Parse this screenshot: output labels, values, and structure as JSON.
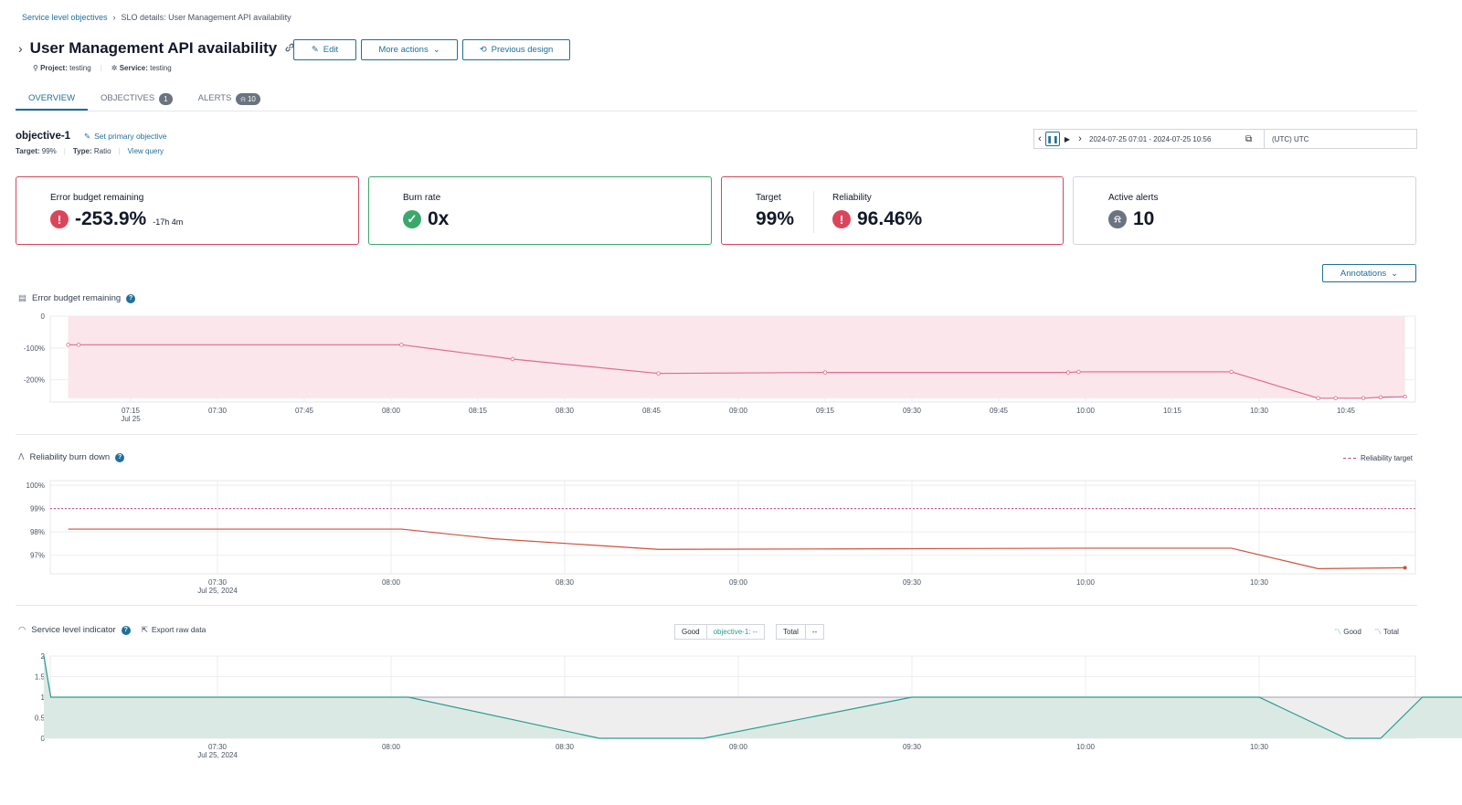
{
  "breadcrumb": {
    "root": "Service level objectives",
    "separator": "›",
    "current": "SLO details: User Management API availability"
  },
  "header": {
    "title": "User Management API availability",
    "edit_label": "Edit",
    "more_actions_label": "More actions",
    "previous_design_label": "Previous design",
    "project_label": "Project:",
    "project_value": "testing",
    "service_label": "Service:",
    "service_value": "testing"
  },
  "tabs": [
    {
      "label": "OVERVIEW",
      "active": true
    },
    {
      "label": "OBJECTIVES",
      "badge": "1"
    },
    {
      "label": "ALERTS",
      "badge": "10"
    }
  ],
  "objective": {
    "name": "objective-1",
    "set_primary": "Set primary objective",
    "target_label": "Target:",
    "target_value": "99%",
    "type_label": "Type:",
    "type_value": "Ratio",
    "view_query": "View query"
  },
  "time_range": {
    "range": "2024-07-25 07:01 - 2024-07-25 10:56",
    "timezone": "(UTC) UTC"
  },
  "cards": {
    "error_budget": {
      "label": "Error budget remaining",
      "value": "-253.9%",
      "sub": "-17h 4m"
    },
    "burn_rate": {
      "label": "Burn rate",
      "value": "0x"
    },
    "target": {
      "label": "Target",
      "value": "99%"
    },
    "reliability": {
      "label": "Reliability",
      "value": "96.46%"
    },
    "active_alerts": {
      "label": "Active alerts",
      "value": "10"
    }
  },
  "annotations_label": "Annotations",
  "colors": {
    "accent": "#1f6f9a",
    "error": "#d9465b",
    "success": "#3aa86a",
    "sli": "#2a9d8f"
  },
  "chart_data": [
    {
      "type": "area",
      "title": "Error budget remaining",
      "x_ticks": [
        "07:15",
        "07:30",
        "07:45",
        "08:00",
        "08:15",
        "08:30",
        "08:45",
        "09:00",
        "09:15",
        "09:30",
        "09:45",
        "10:00",
        "10:15",
        "10:30",
        "10:45"
      ],
      "x_sub_label": "Jul 25",
      "y_ticks": [
        "0",
        "-100%",
        "-200%"
      ],
      "ylim": [
        -270,
        0
      ],
      "series": [
        {
          "values": [
            [
              7.07,
              -90
            ],
            [
              7.1,
              -90
            ],
            [
              8.03,
              -90
            ],
            [
              8.35,
              -135
            ],
            [
              8.77,
              -180
            ],
            [
              9.25,
              -177
            ],
            [
              9.95,
              -177
            ],
            [
              9.98,
              -175
            ],
            [
              10.42,
              -175
            ],
            [
              10.67,
              -258
            ],
            [
              10.72,
              -258
            ],
            [
              10.8,
              -258
            ],
            [
              10.85,
              -255
            ],
            [
              10.92,
              -253
            ]
          ]
        }
      ]
    },
    {
      "type": "line",
      "title": "Reliability burn down",
      "legend": "Reliability target",
      "x_ticks": [
        "07:30",
        "08:00",
        "08:30",
        "09:00",
        "09:30",
        "10:00",
        "10:30"
      ],
      "x_sub_label": "Jul 25, 2024",
      "y_ticks": [
        "100%",
        "99%",
        "98%",
        "97%"
      ],
      "ylim": [
        96.2,
        100.2
      ],
      "target": 99,
      "series": [
        {
          "values": [
            [
              7.07,
              98.12
            ],
            [
              8.03,
              98.12
            ],
            [
              8.3,
              97.7
            ],
            [
              8.77,
              97.25
            ],
            [
              9.3,
              97.27
            ],
            [
              10.0,
              97.3
            ],
            [
              10.42,
              97.3
            ],
            [
              10.67,
              96.42
            ],
            [
              10.92,
              96.46
            ]
          ]
        }
      ]
    },
    {
      "type": "area",
      "title": "Service level indicator",
      "export_label": "Export raw data",
      "good_label": "Good",
      "good_value": "objective-1: --",
      "total_label": "Total",
      "total_value": "--",
      "legend": [
        "Good",
        "Total"
      ],
      "x_ticks": [
        "07:30",
        "08:00",
        "08:30",
        "09:00",
        "09:30",
        "10:00",
        "10:30"
      ],
      "x_sub_label": "Jul 25, 2024",
      "y_ticks": [
        "2",
        "1.5",
        "1",
        "0.5",
        "0"
      ],
      "ylim": [
        0,
        2
      ],
      "series": [
        {
          "name": "Good",
          "values": [
            [
              7.0,
              2
            ],
            [
              7.02,
              1
            ],
            [
              8.05,
              1
            ],
            [
              8.6,
              0
            ],
            [
              8.9,
              0
            ],
            [
              9.5,
              1
            ],
            [
              10.5,
              1
            ],
            [
              10.75,
              0
            ],
            [
              10.85,
              0
            ],
            [
              10.97,
              1
            ],
            [
              11.6,
              1
            ]
          ]
        },
        {
          "name": "Total",
          "values": [
            [
              7.0,
              2
            ],
            [
              7.02,
              1
            ],
            [
              11.6,
              1
            ]
          ]
        }
      ]
    }
  ]
}
